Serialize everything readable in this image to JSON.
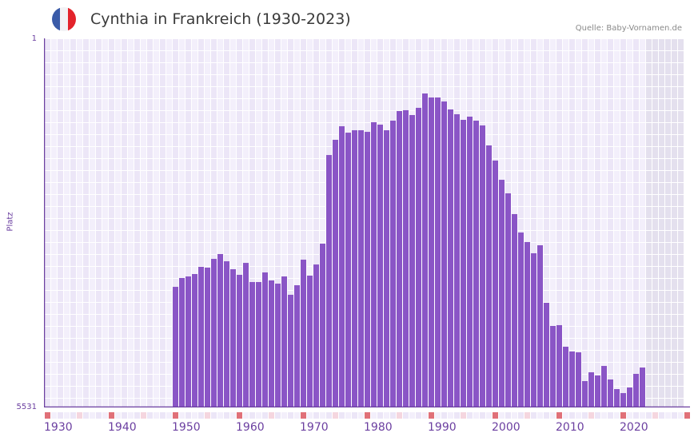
{
  "header": {
    "title": "Cynthia in Frankreich (1930-2023)",
    "source": "Quelle: Baby-Vornamen.de",
    "flag_colors": [
      "#3a5ba8",
      "#f2f2f5",
      "#e3232b"
    ]
  },
  "colors": {
    "bar": "#8a55c6",
    "axis": "#6b3fa0",
    "cell_a": "#f3effb",
    "cell_b": "#ece6f7",
    "future_shade": "#e4e0ee",
    "decade_marker": "#e07078",
    "half_decade_marker": "#f5d6df",
    "year_marker": "#ede6f7"
  },
  "chart_data": {
    "type": "bar",
    "title": "Cynthia in Frankreich (1930-2023)",
    "xlabel": "",
    "ylabel": "Platz",
    "y_inverted": true,
    "ylim": [
      1,
      5531
    ],
    "yticks": [
      "1",
      "5531"
    ],
    "xticks": [
      "1930",
      "1940",
      "1950",
      "1960",
      "1970",
      "1980",
      "1990",
      "2000",
      "2010",
      "2020"
    ],
    "x_range": [
      1930,
      2029
    ],
    "grid": true,
    "shaded_from_year": 2024,
    "categories": [
      1950,
      1951,
      1952,
      1953,
      1954,
      1955,
      1956,
      1957,
      1958,
      1959,
      1960,
      1961,
      1962,
      1963,
      1964,
      1965,
      1966,
      1967,
      1968,
      1969,
      1970,
      1971,
      1972,
      1973,
      1974,
      1975,
      1976,
      1977,
      1978,
      1979,
      1980,
      1981,
      1982,
      1983,
      1984,
      1985,
      1986,
      1987,
      1988,
      1989,
      1990,
      1991,
      1992,
      1993,
      1994,
      1995,
      1996,
      1997,
      1998,
      1999,
      2000,
      2001,
      2002,
      2003,
      2004,
      2005,
      2006,
      2007,
      2008,
      2009,
      2010,
      2011,
      2012,
      2013,
      2014,
      2015,
      2016,
      2017,
      2018,
      2019,
      2020,
      2021,
      2022,
      2023
    ],
    "values": [
      3724,
      3592,
      3568,
      3532,
      3424,
      3436,
      3305,
      3233,
      3341,
      3460,
      3544,
      3365,
      3652,
      3652,
      3508,
      3628,
      3676,
      3568,
      3843,
      3700,
      3317,
      3556,
      3389,
      3077,
      1749,
      1521,
      1318,
      1414,
      1378,
      1378,
      1402,
      1258,
      1294,
      1378,
      1234,
      1090,
      1078,
      1150,
      1042,
      827,
      887,
      887,
      947,
      1066,
      1138,
      1222,
      1174,
      1234,
      1306,
      1605,
      1832,
      2120,
      2323,
      2634,
      2910,
      3053,
      3221,
      3101,
      3963,
      4310,
      4298,
      4621,
      4693,
      4705,
      5136,
      5004,
      5052,
      4909,
      5112,
      5256,
      5316,
      5232,
      5028,
      4933
    ]
  }
}
